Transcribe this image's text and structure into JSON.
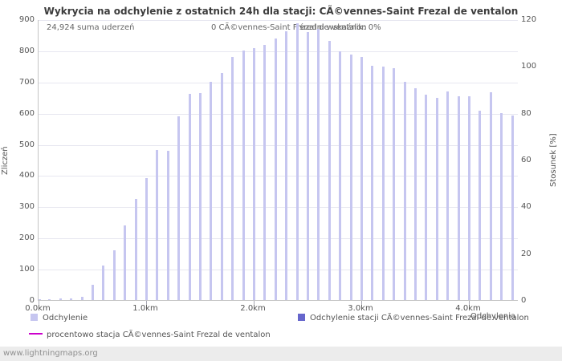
{
  "title": "Wykrycia na odchylenie z ostatnich 24h dla stacji: CÃ©vennes-Saint Frezal de ventalon",
  "annotations": {
    "total": "24,924 suma uderzeń",
    "station": "0 CÃ©vennes-Saint Frezal de ventalon",
    "avg": "średni wskaźnik: 0%"
  },
  "axes": {
    "left_label": "Zliczeń",
    "right_label": "Stosunek [%]",
    "x_label": "Odchylenia"
  },
  "legend": {
    "items": [
      {
        "label": "Odchylenie",
        "color": "#c6c6f0",
        "type": "box"
      },
      {
        "label": "Odchylenie stacji CÃ©vennes-Saint Frezal de ventalon",
        "color": "#6666cc",
        "type": "box"
      },
      {
        "label": "procentowo stacja CÃ©vennes-Saint Frezal de ventalon",
        "color": "#cc00cc",
        "type": "line"
      }
    ]
  },
  "footer": "www.lightningmaps.org",
  "chart_data": {
    "type": "bar",
    "title": "Wykrycia na odchylenie z ostatnich 24h dla stacji: CÃ©vennes-Saint Frezal de ventalon",
    "xlabel": "Odchylenia",
    "ylabel_left": "Zliczeń",
    "ylabel_right": "Stosunek [%]",
    "ylim_left": [
      0,
      900
    ],
    "ylim_right": [
      0,
      120
    ],
    "ytick_step_left": 100,
    "ytick_step_right": 20,
    "grid": "horizontal",
    "legend_position": "bottom",
    "annotations": [
      "24,924 suma uderzeń",
      "0 CÃ©vennes-Saint Frezal de ventalon",
      "średni wskaźnik: 0%"
    ],
    "xticks": [
      {
        "km": 0,
        "label": "0.0km"
      },
      {
        "km": 1,
        "label": "1.0km"
      },
      {
        "km": 2,
        "label": "2.0km"
      },
      {
        "km": 3,
        "label": "3.0km"
      },
      {
        "km": 4,
        "label": "4.0km"
      }
    ],
    "x_km": [
      0,
      0.1,
      0.2,
      0.3,
      0.4,
      0.5,
      0.6,
      0.7,
      0.8,
      0.9,
      1,
      1.1,
      1.2,
      1.3,
      1.4,
      1.5,
      1.6,
      1.7,
      1.8,
      1.9,
      2,
      2.1,
      2.2,
      2.3,
      2.4,
      2.5,
      2.6,
      2.7,
      2.8,
      2.9,
      3,
      3.1,
      3.2,
      3.3,
      3.4,
      3.5,
      3.6,
      3.7,
      3.8,
      3.9,
      4,
      4.1,
      4.2,
      4.3,
      4.4
    ],
    "series": [
      {
        "name": "Odchylenie",
        "style": "bar",
        "axis": "left",
        "color": "#c6c6f0",
        "values": [
          2,
          3,
          4,
          6,
          10,
          50,
          110,
          160,
          240,
          325,
          390,
          480,
          478,
          590,
          660,
          663,
          700,
          728,
          780,
          800,
          808,
          818,
          838,
          862,
          888,
          858,
          868,
          830,
          798,
          788,
          778,
          752,
          748,
          742,
          700,
          680,
          658,
          648,
          668,
          652,
          652,
          608,
          665,
          600,
          592
        ]
      },
      {
        "name": "Odchylenie stacji CÃ©vennes-Saint Frezal de ventalon",
        "style": "bar",
        "axis": "left",
        "color": "#6666cc",
        "values": [
          0,
          0,
          0,
          0,
          0,
          0,
          0,
          0,
          0,
          0,
          0,
          0,
          0,
          0,
          0,
          0,
          0,
          0,
          0,
          0,
          0,
          0,
          0,
          0,
          0,
          0,
          0,
          0,
          0,
          0,
          0,
          0,
          0,
          0,
          0,
          0,
          0,
          0,
          0,
          0,
          0,
          0,
          0,
          0,
          0
        ]
      },
      {
        "name": "procentowo stacja CÃ©vennes-Saint Frezal de ventalon",
        "style": "line",
        "axis": "right",
        "color": "#cc00cc",
        "values": [
          0,
          0,
          0,
          0,
          0,
          0,
          0,
          0,
          0,
          0,
          0,
          0,
          0,
          0,
          0,
          0,
          0,
          0,
          0,
          0,
          0,
          0,
          0,
          0,
          0,
          0,
          0,
          0,
          0,
          0,
          0,
          0,
          0,
          0,
          0,
          0,
          0,
          0,
          0,
          0,
          0,
          0,
          0,
          0,
          0
        ]
      }
    ]
  }
}
